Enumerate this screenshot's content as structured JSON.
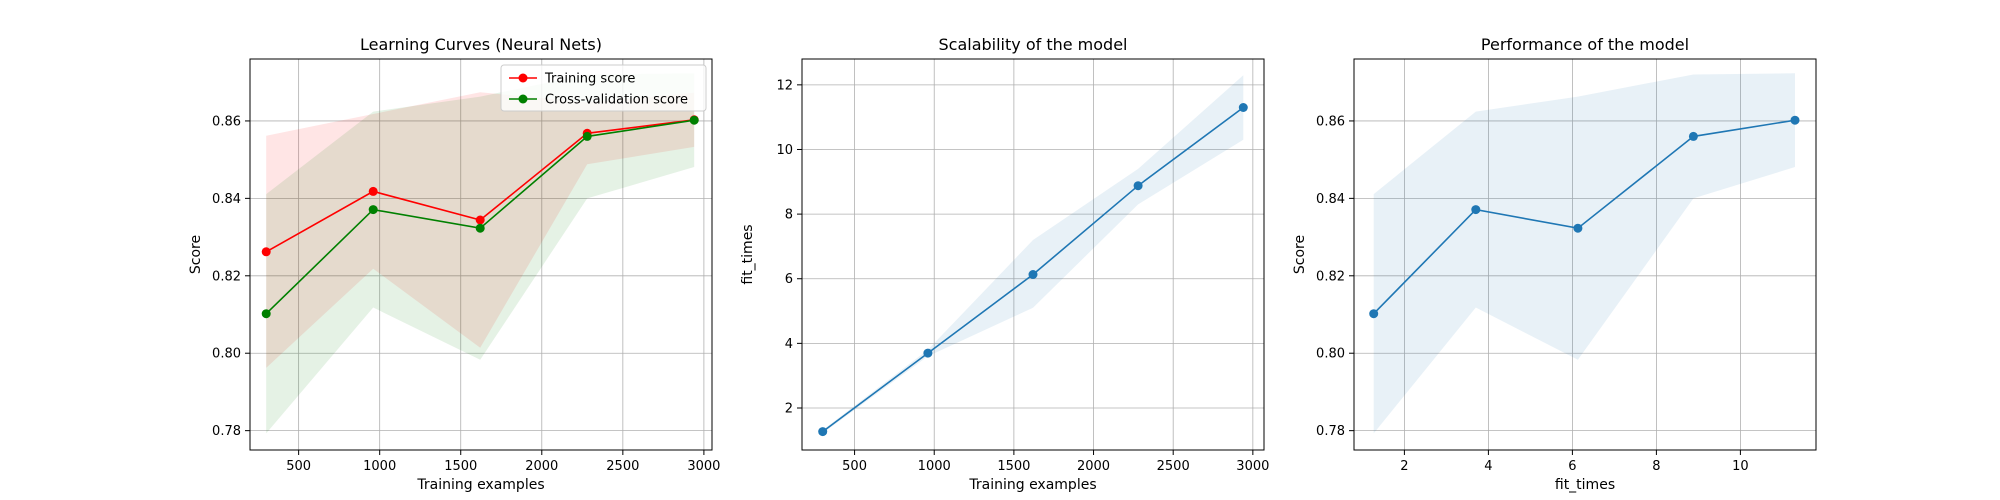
{
  "chart_data": [
    {
      "type": "line",
      "title": "Learning Curves (Neural Nets)",
      "xlabel": "Training examples",
      "ylabel": "Score",
      "xlim": [
        200,
        3050
      ],
      "ylim": [
        0.775,
        0.876
      ],
      "xticks": [
        500,
        1000,
        1500,
        2000,
        2500,
        3000
      ],
      "yticks": [
        0.78,
        0.8,
        0.82,
        0.84,
        0.86
      ],
      "ytick_decimals": 2,
      "grid": true,
      "legend": "top-right",
      "series": [
        {
          "name": "Training score",
          "color": "#ff0000",
          "band_color": "#ff0000",
          "x": [
            300,
            960,
            1620,
            2280,
            2940
          ],
          "y": [
            0.8262,
            0.8418,
            0.8344,
            0.8568,
            0.8603
          ],
          "band_lower": [
            0.7962,
            0.8218,
            0.8014,
            0.8488,
            0.8533
          ],
          "band_upper": [
            0.8562,
            0.8618,
            0.8674,
            0.8648,
            0.8673
          ]
        },
        {
          "name": "Cross-validation score",
          "color": "#008000",
          "band_color": "#008000",
          "x": [
            300,
            960,
            1620,
            2280,
            2940
          ],
          "y": [
            0.8102,
            0.8371,
            0.8323,
            0.856,
            0.8602
          ],
          "band_lower": [
            0.7793,
            0.8118,
            0.7983,
            0.84,
            0.8481
          ],
          "band_upper": [
            0.8411,
            0.8624,
            0.8663,
            0.872,
            0.8723
          ]
        }
      ]
    },
    {
      "type": "line",
      "title": "Scalability of the model",
      "xlabel": "Training examples",
      "ylabel": "fit_times",
      "xlim": [
        170,
        3070
      ],
      "ylim": [
        0.7,
        12.8
      ],
      "xticks": [
        500,
        1000,
        1500,
        2000,
        2500,
        3000
      ],
      "yticks": [
        2,
        4,
        6,
        8,
        10,
        12
      ],
      "ytick_decimals": 0,
      "grid": true,
      "series": [
        {
          "color": "#1f77b4",
          "band_color": "#1f77b4",
          "x": [
            300,
            960,
            1620,
            2280,
            2940
          ],
          "y": [
            1.27,
            3.7,
            6.13,
            8.88,
            11.3
          ],
          "band_lower": [
            1.22,
            3.6,
            5.1,
            8.3,
            10.3
          ],
          "band_upper": [
            1.32,
            3.8,
            7.2,
            9.4,
            12.3
          ]
        }
      ]
    },
    {
      "type": "line",
      "title": "Performance of the model",
      "xlabel": "fit_times",
      "ylabel": "Score",
      "xlim": [
        0.8,
        11.8
      ],
      "ylim": [
        0.775,
        0.876
      ],
      "xticks": [
        2,
        4,
        6,
        8,
        10
      ],
      "yticks": [
        0.78,
        0.8,
        0.82,
        0.84,
        0.86
      ],
      "ytick_decimals": 2,
      "grid": true,
      "series": [
        {
          "color": "#1f77b4",
          "band_color": "#1f77b4",
          "x": [
            1.27,
            3.7,
            6.13,
            8.88,
            11.3
          ],
          "y": [
            0.8102,
            0.8371,
            0.8323,
            0.856,
            0.8602
          ],
          "band_lower": [
            0.7793,
            0.8118,
            0.7983,
            0.84,
            0.8481
          ],
          "band_upper": [
            0.8411,
            0.8624,
            0.8663,
            0.872,
            0.8723
          ]
        }
      ]
    }
  ]
}
